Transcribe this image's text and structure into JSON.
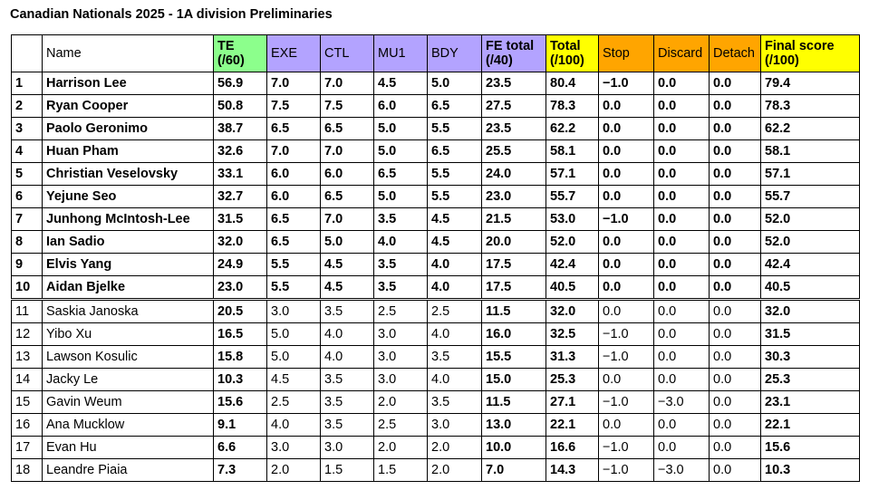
{
  "title": "Canadian Nationals 2025 - 1A division Preliminaries",
  "colors": {
    "te": "#8cff8c",
    "sub": "#b3a3ff",
    "total": "#ffff00",
    "deduction": "#ffa500"
  },
  "headers": {
    "rank": "",
    "name": "Name",
    "te_line1": "TE",
    "te_line2": "(/60)",
    "exe": "EXE",
    "ctl": "CTL",
    "mu1": "MU1",
    "bdy": "BDY",
    "fe_line1": "FE total",
    "fe_line2": "(/40)",
    "total_line1": "Total",
    "total_line2": "(/100)",
    "stop": "Stop",
    "discard": "Discard",
    "detach": "Detach",
    "final_line1": "Final score",
    "final_line2": "(/100)"
  },
  "rows": [
    {
      "rank": "1",
      "name": "Harrison Lee",
      "te": "56.9",
      "exe": "7.0",
      "ctl": "7.0",
      "mu1": "4.5",
      "bdy": "5.0",
      "fe": "23.5",
      "total": "80.4",
      "stop": "−1.0",
      "discard": "0.0",
      "detach": "0.0",
      "final": "79.4"
    },
    {
      "rank": "2",
      "name": "Ryan Cooper",
      "te": "50.8",
      "exe": "7.5",
      "ctl": "7.5",
      "mu1": "6.0",
      "bdy": "6.5",
      "fe": "27.5",
      "total": "78.3",
      "stop": "0.0",
      "discard": "0.0",
      "detach": "0.0",
      "final": "78.3"
    },
    {
      "rank": "3",
      "name": "Paolo Geronimo",
      "te": "38.7",
      "exe": "6.5",
      "ctl": "6.5",
      "mu1": "5.0",
      "bdy": "5.5",
      "fe": "23.5",
      "total": "62.2",
      "stop": "0.0",
      "discard": "0.0",
      "detach": "0.0",
      "final": "62.2"
    },
    {
      "rank": "4",
      "name": "Huan Pham",
      "te": "32.6",
      "exe": "7.0",
      "ctl": "7.0",
      "mu1": "5.0",
      "bdy": "6.5",
      "fe": "25.5",
      "total": "58.1",
      "stop": "0.0",
      "discard": "0.0",
      "detach": "0.0",
      "final": "58.1"
    },
    {
      "rank": "5",
      "name": "Christian Veselovsky",
      "te": "33.1",
      "exe": "6.0",
      "ctl": "6.0",
      "mu1": "6.5",
      "bdy": "5.5",
      "fe": "24.0",
      "total": "57.1",
      "stop": "0.0",
      "discard": "0.0",
      "detach": "0.0",
      "final": "57.1"
    },
    {
      "rank": "6",
      "name": "Yejune Seo",
      "te": "32.7",
      "exe": "6.0",
      "ctl": "6.5",
      "mu1": "5.0",
      "bdy": "5.5",
      "fe": "23.0",
      "total": "55.7",
      "stop": "0.0",
      "discard": "0.0",
      "detach": "0.0",
      "final": "55.7"
    },
    {
      "rank": "7",
      "name": "Junhong McIntosh-Lee",
      "te": "31.5",
      "exe": "6.5",
      "ctl": "7.0",
      "mu1": "3.5",
      "bdy": "4.5",
      "fe": "21.5",
      "total": "53.0",
      "stop": "−1.0",
      "discard": "0.0",
      "detach": "0.0",
      "final": "52.0"
    },
    {
      "rank": "8",
      "name": "Ian Sadio",
      "te": "32.0",
      "exe": "6.5",
      "ctl": "5.0",
      "mu1": "4.0",
      "bdy": "4.5",
      "fe": "20.0",
      "total": "52.0",
      "stop": "0.0",
      "discard": "0.0",
      "detach": "0.0",
      "final": "52.0"
    },
    {
      "rank": "9",
      "name": "Elvis Yang",
      "te": "24.9",
      "exe": "5.5",
      "ctl": "4.5",
      "mu1": "3.5",
      "bdy": "4.0",
      "fe": "17.5",
      "total": "42.4",
      "stop": "0.0",
      "discard": "0.0",
      "detach": "0.0",
      "final": "42.4"
    },
    {
      "rank": "10",
      "name": "Aidan Bjelke",
      "te": "23.0",
      "exe": "5.5",
      "ctl": "4.5",
      "mu1": "3.5",
      "bdy": "4.0",
      "fe": "17.5",
      "total": "40.5",
      "stop": "0.0",
      "discard": "0.0",
      "detach": "0.0",
      "final": "40.5"
    },
    {
      "rank": "11",
      "name": "Saskia Janoska",
      "te": "20.5",
      "exe": "3.0",
      "ctl": "3.5",
      "mu1": "2.5",
      "bdy": "2.5",
      "fe": "11.5",
      "total": "32.0",
      "stop": "0.0",
      "discard": "0.0",
      "detach": "0.0",
      "final": "32.0"
    },
    {
      "rank": "12",
      "name": "Yibo Xu",
      "te": "16.5",
      "exe": "5.0",
      "ctl": "4.0",
      "mu1": "3.0",
      "bdy": "4.0",
      "fe": "16.0",
      "total": "32.5",
      "stop": "−1.0",
      "discard": "0.0",
      "detach": "0.0",
      "final": "31.5"
    },
    {
      "rank": "13",
      "name": "Lawson Kosulic",
      "te": "15.8",
      "exe": "5.0",
      "ctl": "4.0",
      "mu1": "3.0",
      "bdy": "3.5",
      "fe": "15.5",
      "total": "31.3",
      "stop": "−1.0",
      "discard": "0.0",
      "detach": "0.0",
      "final": "30.3"
    },
    {
      "rank": "14",
      "name": "Jacky Le",
      "te": "10.3",
      "exe": "4.5",
      "ctl": "3.5",
      "mu1": "3.0",
      "bdy": "4.0",
      "fe": "15.0",
      "total": "25.3",
      "stop": "0.0",
      "discard": "0.0",
      "detach": "0.0",
      "final": "25.3"
    },
    {
      "rank": "15",
      "name": "Gavin Weum",
      "te": "15.6",
      "exe": "2.5",
      "ctl": "3.5",
      "mu1": "2.0",
      "bdy": "3.5",
      "fe": "11.5",
      "total": "27.1",
      "stop": "−1.0",
      "discard": "−3.0",
      "detach": "0.0",
      "final": "23.1"
    },
    {
      "rank": "16",
      "name": "Ana Mucklow",
      "te": "9.1",
      "exe": "4.0",
      "ctl": "3.5",
      "mu1": "2.5",
      "bdy": "3.0",
      "fe": "13.0",
      "total": "22.1",
      "stop": "0.0",
      "discard": "0.0",
      "detach": "0.0",
      "final": "22.1"
    },
    {
      "rank": "17",
      "name": "Evan Hu",
      "te": "6.6",
      "exe": "3.0",
      "ctl": "3.0",
      "mu1": "2.0",
      "bdy": "2.0",
      "fe": "10.0",
      "total": "16.6",
      "stop": "−1.0",
      "discard": "0.0",
      "detach": "0.0",
      "final": "15.6"
    },
    {
      "rank": "18",
      "name": "Leandre Piaia",
      "te": "7.3",
      "exe": "2.0",
      "ctl": "1.5",
      "mu1": "1.5",
      "bdy": "2.0",
      "fe": "7.0",
      "total": "14.3",
      "stop": "−1.0",
      "discard": "−3.0",
      "detach": "0.0",
      "final": "10.3"
    }
  ]
}
